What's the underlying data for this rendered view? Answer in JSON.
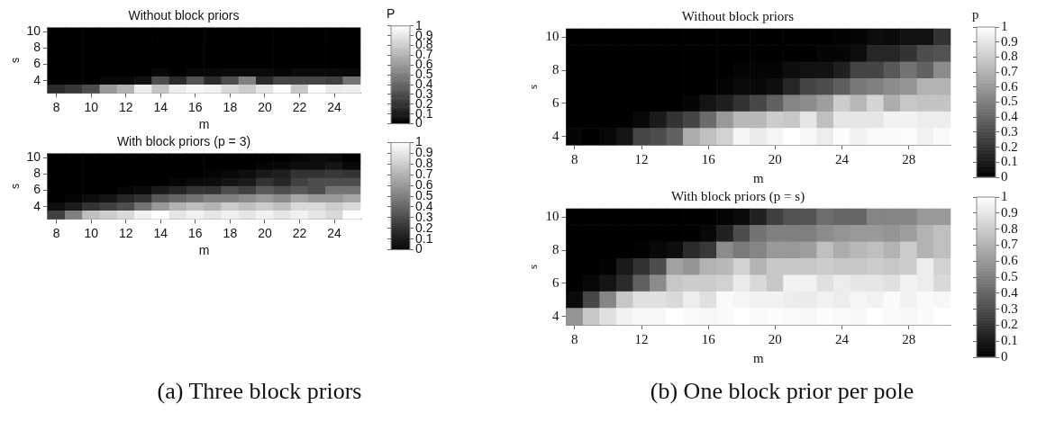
{
  "chart_data": [
    {
      "type": "heatmap",
      "title": "Without block priors",
      "xlabel": "m",
      "ylabel": "s",
      "categories": [
        "8",
        null,
        "10",
        null,
        "12",
        null,
        "14",
        null,
        "16",
        null,
        "18",
        null,
        "20",
        null,
        "22",
        null,
        "24",
        null
      ],
      "y_categories": [
        "10",
        null,
        "8",
        null,
        "6",
        null,
        "4",
        null
      ],
      "clim": [
        0,
        1
      ],
      "cticks": [
        0,
        0.1,
        0.2,
        0.3,
        0.4,
        0.5,
        0.6,
        0.7,
        0.8,
        0.9,
        1
      ],
      "clabel": "P",
      "cells": [
        [
          0,
          0,
          0,
          0,
          0,
          0,
          0,
          0,
          0,
          0,
          0,
          0,
          0,
          0,
          0,
          0,
          0,
          0
        ],
        [
          0,
          0,
          0,
          0,
          0,
          0,
          0,
          0,
          0,
          0,
          0,
          0,
          0,
          0,
          0,
          0,
          0,
          0
        ],
        [
          0,
          0,
          0,
          0,
          0,
          0,
          0,
          0,
          0,
          0,
          0,
          0,
          0,
          0,
          0,
          0,
          0,
          0
        ],
        [
          0,
          0,
          0,
          0,
          0,
          0,
          0,
          0,
          0,
          0,
          0,
          0,
          0,
          0,
          0,
          0,
          0,
          0
        ],
        [
          0,
          0,
          0,
          0,
          0,
          0,
          0,
          0,
          0,
          0,
          0,
          0,
          0,
          0,
          0,
          0,
          0,
          0
        ],
        [
          0,
          0,
          0,
          0,
          0,
          0,
          0.03,
          0,
          0.03,
          0.03,
          0.04,
          0.04,
          0.04,
          0.02,
          0.04,
          0.04,
          0.04,
          0.03
        ],
        [
          0,
          0,
          0,
          0.03,
          0.03,
          0.07,
          0.3,
          0.17,
          0.32,
          0.17,
          0.3,
          0.5,
          0.17,
          0.27,
          0.27,
          0.27,
          0.25,
          0.45
        ],
        [
          0.17,
          0.22,
          0.3,
          0.6,
          0.7,
          0.93,
          0.77,
          0.93,
          0.97,
          0.95,
          0.85,
          0.8,
          0.9,
          1,
          0.78,
          1,
          0.92,
          0.93
        ]
      ]
    },
    {
      "type": "heatmap",
      "title": "With block priors (p = 3)",
      "xlabel": "m",
      "ylabel": "s",
      "categories": [
        "8",
        null,
        "10",
        null,
        "12",
        null,
        "14",
        null,
        "16",
        null,
        "18",
        null,
        "20",
        null,
        "22",
        null,
        "24",
        null
      ],
      "y_categories": [
        "10",
        null,
        "8",
        null,
        "6",
        null,
        "4",
        null
      ],
      "clim": [
        0,
        1
      ],
      "cticks": [
        0,
        0.1,
        0.2,
        0.3,
        0.4,
        0.5,
        0.6,
        0.7,
        0.8,
        0.9,
        1
      ],
      "annotations": [
        "(a) Three block priors"
      ],
      "cells": [
        [
          0,
          0,
          0,
          0,
          0,
          0,
          0,
          0,
          0,
          0,
          0,
          0,
          0,
          0,
          0.02,
          0.04,
          0.03,
          0
        ],
        [
          0,
          0,
          0,
          0,
          0,
          0,
          0,
          0,
          0,
          0,
          0,
          0,
          0.02,
          0.03,
          0.05,
          0.05,
          0.08,
          0.03
        ],
        [
          0,
          0,
          0,
          0,
          0,
          0,
          0,
          0,
          0,
          0.02,
          0.03,
          0.05,
          0.1,
          0.12,
          0.2,
          0.2,
          0.22,
          0.2
        ],
        [
          0,
          0,
          0,
          0,
          0,
          0,
          0,
          0.02,
          0.04,
          0.05,
          0.08,
          0.1,
          0.2,
          0.15,
          0.25,
          0.3,
          0.3,
          0.3
        ],
        [
          0,
          0,
          0,
          0,
          0.02,
          0.04,
          0.1,
          0.15,
          0.2,
          0.2,
          0.3,
          0.25,
          0.35,
          0.3,
          0.35,
          0.3,
          0.45,
          0.45
        ],
        [
          0,
          0.02,
          0.05,
          0.08,
          0.15,
          0.2,
          0.35,
          0.4,
          0.45,
          0.5,
          0.5,
          0.55,
          0.6,
          0.55,
          0.65,
          0.6,
          0.6,
          0.65
        ],
        [
          0.05,
          0.1,
          0.2,
          0.25,
          0.3,
          0.45,
          0.6,
          0.7,
          0.75,
          0.7,
          0.8,
          0.75,
          0.8,
          0.75,
          0.85,
          0.85,
          0.8,
          0.85
        ],
        [
          0.25,
          0.5,
          0.75,
          0.8,
          0.85,
          0.95,
          1,
          0.9,
          0.95,
          0.9,
          0.95,
          0.9,
          0.95,
          0.9,
          0.95,
          0.9,
          0.85,
          1
        ]
      ]
    },
    {
      "type": "heatmap",
      "title": "Without block priors",
      "xlabel": "m",
      "ylabel": "s",
      "categories": [
        "8",
        null,
        null,
        null,
        "12",
        null,
        null,
        null,
        "16",
        null,
        null,
        null,
        "20",
        null,
        null,
        null,
        "24",
        null,
        null,
        null,
        "28",
        null,
        null
      ],
      "y_categories": [
        "10",
        null,
        "8",
        null,
        "6",
        null,
        "4"
      ],
      "clim": [
        0,
        1
      ],
      "cticks": [
        0,
        0.1,
        0.2,
        0.3,
        0.4,
        0.5,
        0.6,
        0.7,
        0.8,
        0.9,
        1
      ],
      "clabel": "p",
      "cells": [
        [
          0,
          0,
          0,
          0,
          0,
          0,
          0,
          0,
          0,
          0,
          0,
          0,
          0,
          0,
          0,
          0,
          0.01,
          0.02,
          0.05,
          0.04,
          0.07,
          0.07,
          0.2
        ],
        [
          0,
          0,
          0,
          0,
          0,
          0,
          0,
          0,
          0,
          0,
          0,
          0,
          0,
          0,
          0,
          0.02,
          0.02,
          0.05,
          0.15,
          0.15,
          0.2,
          0.3,
          0.32
        ],
        [
          0,
          0,
          0,
          0,
          0,
          0,
          0,
          0,
          0,
          0,
          0.02,
          0.02,
          0.02,
          0.05,
          0.07,
          0.07,
          0.12,
          0.27,
          0.27,
          0.35,
          0.45,
          0.38,
          0.55
        ],
        [
          0,
          0,
          0,
          0,
          0,
          0,
          0,
          0,
          0,
          0.02,
          0.04,
          0.03,
          0.06,
          0.15,
          0.27,
          0.3,
          0.37,
          0.47,
          0.5,
          0.55,
          0.58,
          0.7,
          0.7
        ],
        [
          0,
          0,
          0,
          0,
          0,
          0,
          0,
          0.02,
          0.08,
          0.12,
          0.2,
          0.28,
          0.38,
          0.52,
          0.55,
          0.62,
          0.8,
          0.72,
          0.83,
          0.68,
          0.78,
          0.77,
          0.77
        ],
        [
          0,
          0,
          0,
          0,
          0.03,
          0.1,
          0.2,
          0.27,
          0.42,
          0.6,
          0.72,
          0.72,
          0.8,
          0.78,
          0.9,
          0.75,
          0.9,
          0.9,
          0.9,
          0.95,
          0.95,
          0.93,
          0.93
        ],
        [
          0.02,
          0,
          0.03,
          0.08,
          0.28,
          0.3,
          0.38,
          0.68,
          0.75,
          0.82,
          0.96,
          0.92,
          0.96,
          1,
          0.97,
          0.93,
          0.99,
          0.95,
          0.98,
          0.98,
          0.99,
          0.95,
          0.98
        ]
      ]
    },
    {
      "type": "heatmap",
      "title": "With block priors (p = s)",
      "xlabel": "m",
      "ylabel": "s",
      "categories": [
        "8",
        null,
        null,
        null,
        "12",
        null,
        null,
        null,
        "16",
        null,
        null,
        null,
        "20",
        null,
        null,
        null,
        "24",
        null,
        null,
        null,
        "28",
        null,
        null
      ],
      "y_categories": [
        "10",
        null,
        "8",
        null,
        "6",
        null,
        "4"
      ],
      "clim": [
        0,
        1
      ],
      "cticks": [
        0,
        0.1,
        0.2,
        0.3,
        0.4,
        0.5,
        0.6,
        0.7,
        0.8,
        0.9,
        1
      ],
      "annotations": [
        "(b) One block prior per pole"
      ],
      "cells": [
        [
          0,
          0,
          0,
          0,
          0,
          0,
          0,
          0,
          0,
          0.02,
          0.04,
          0.13,
          0.25,
          0.32,
          0.33,
          0.43,
          0.4,
          0.4,
          0.52,
          0.52,
          0.52,
          0.6,
          0.6
        ],
        [
          0,
          0,
          0,
          0,
          0,
          0,
          0,
          0,
          0.03,
          0.13,
          0.3,
          0.45,
          0.5,
          0.5,
          0.5,
          0.55,
          0.58,
          0.6,
          0.6,
          0.58,
          0.62,
          0.7,
          0.75
        ],
        [
          0,
          0,
          0,
          0,
          0.01,
          0.03,
          0.05,
          0.17,
          0.22,
          0.55,
          0.48,
          0.52,
          0.6,
          0.6,
          0.62,
          0.75,
          0.68,
          0.72,
          0.75,
          0.7,
          0.8,
          0.7,
          0.75
        ],
        [
          0,
          0,
          0.01,
          0.1,
          0.2,
          0.3,
          0.63,
          0.58,
          0.7,
          0.72,
          0.82,
          0.7,
          0.78,
          0.78,
          0.78,
          0.8,
          0.78,
          0.78,
          0.8,
          0.78,
          0.8,
          0.93,
          0.82
        ],
        [
          0,
          0.03,
          0.08,
          0.17,
          0.38,
          0.55,
          0.78,
          0.8,
          0.8,
          0.82,
          0.92,
          0.85,
          0.78,
          0.95,
          0.95,
          0.88,
          0.93,
          0.9,
          0.9,
          0.88,
          0.95,
          0.93,
          0.85
        ],
        [
          0.04,
          0.28,
          0.52,
          0.78,
          0.88,
          0.88,
          0.85,
          0.93,
          0.88,
          0.98,
          0.96,
          0.95,
          0.95,
          0.93,
          0.92,
          0.95,
          0.93,
          0.96,
          0.95,
          0.98,
          0.95,
          0.98,
          0.97
        ],
        [
          0.58,
          0.78,
          0.88,
          0.95,
          0.97,
          0.97,
          1,
          0.98,
          0.97,
          0.98,
          1,
          0.98,
          0.99,
          0.98,
          0.97,
          0.99,
          0.98,
          0.97,
          1,
          0.98,
          0.97,
          0.98,
          1
        ]
      ]
    }
  ]
}
